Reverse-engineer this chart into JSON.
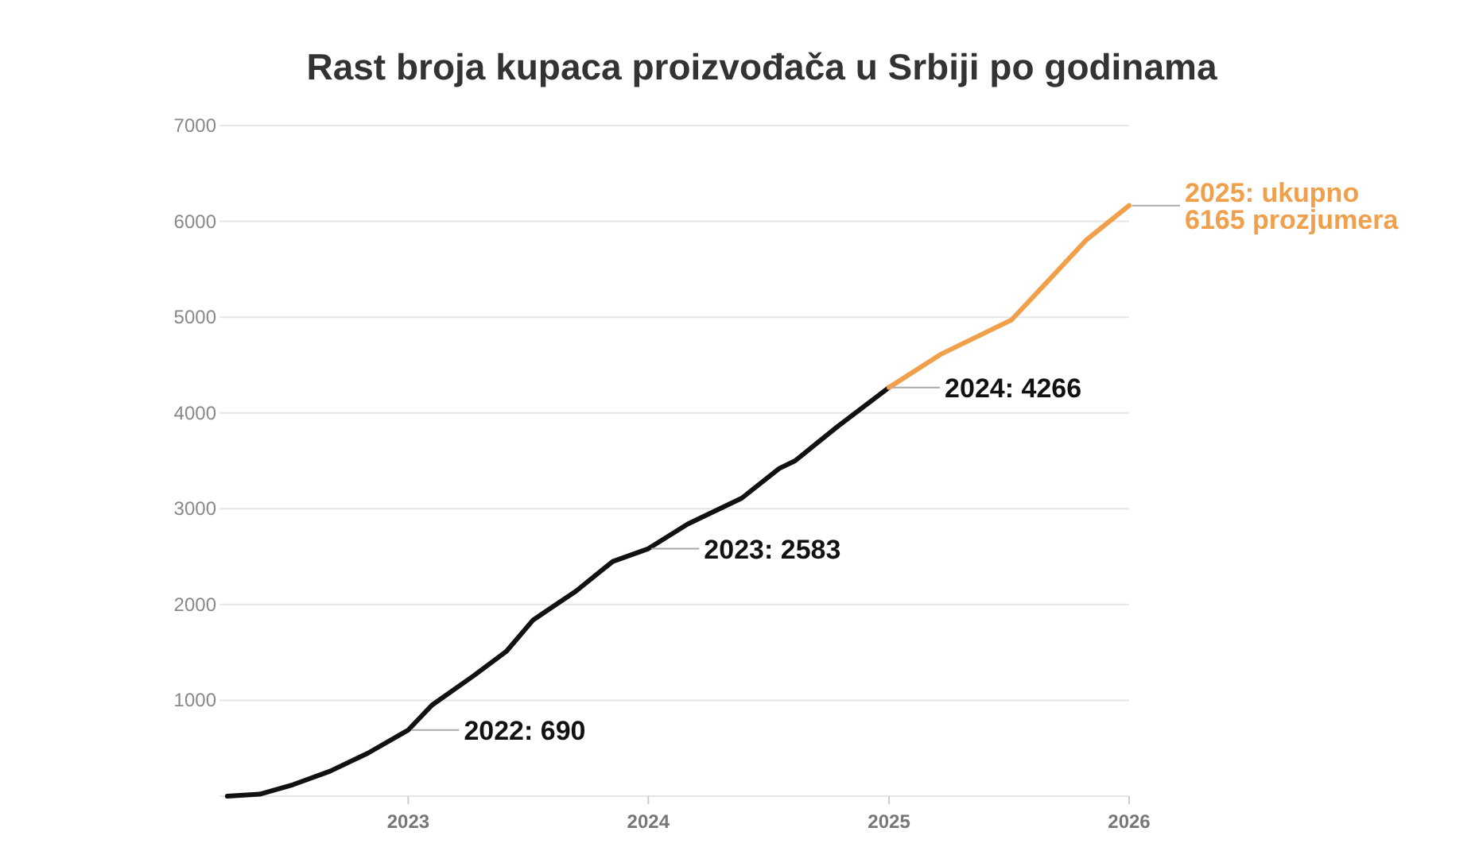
{
  "chart_data": {
    "type": "line",
    "title": "Rast broja kupaca proizvođača u Srbiji po godinama",
    "xlim": [
      "2022-03-20",
      "2026-01-01"
    ],
    "xticks": [
      "2023",
      "2024",
      "2025",
      "2026"
    ],
    "ylim": [
      0,
      7000
    ],
    "yticks": [
      1000,
      2000,
      3000,
      4000,
      5000,
      6000,
      7000
    ],
    "grid": "y",
    "line_style": "solid",
    "marker": "none",
    "series": [
      {
        "color": "#111111",
        "x": [
          "2022-04-01",
          "2022-05-20",
          "2022-07-10",
          "2022-09-04",
          "2022-11-01",
          "2023-01-01",
          "2023-02-06",
          "2023-04-11",
          "2023-05-30",
          "2023-07-10",
          "2023-09-13",
          "2023-11-08",
          "2024-01-01",
          "2024-03-01",
          "2024-05-22",
          "2024-07-18",
          "2024-08-11",
          "2024-10-15",
          "2025-01-01"
        ],
        "values": [
          0,
          20,
          120,
          260,
          450,
          690,
          950,
          1260,
          1510,
          1840,
          2140,
          2450,
          2583,
          2840,
          3110,
          3420,
          3500,
          3860,
          4266
        ]
      },
      {
        "color": "#f0a04b",
        "x": [
          "2025-01-01",
          "2025-03-20",
          "2025-07-06",
          "2025-08-31",
          "2025-10-27",
          "2026-01-01"
        ],
        "values": [
          4266,
          4610,
          4970,
          5380,
          5800,
          6165
        ]
      }
    ],
    "annotations": [
      {
        "text": "2022: 690",
        "x": "2023-01-01",
        "y": 690
      },
      {
        "text": "2023: 2583",
        "x": "2024-01-01",
        "y": 2583
      },
      {
        "text": "2024: 4266",
        "x": "2025-01-01",
        "y": 4266
      },
      {
        "text": "2025: ukupno\n6165 prozjumera",
        "x": "2026-01-01",
        "y": 6165
      }
    ]
  }
}
